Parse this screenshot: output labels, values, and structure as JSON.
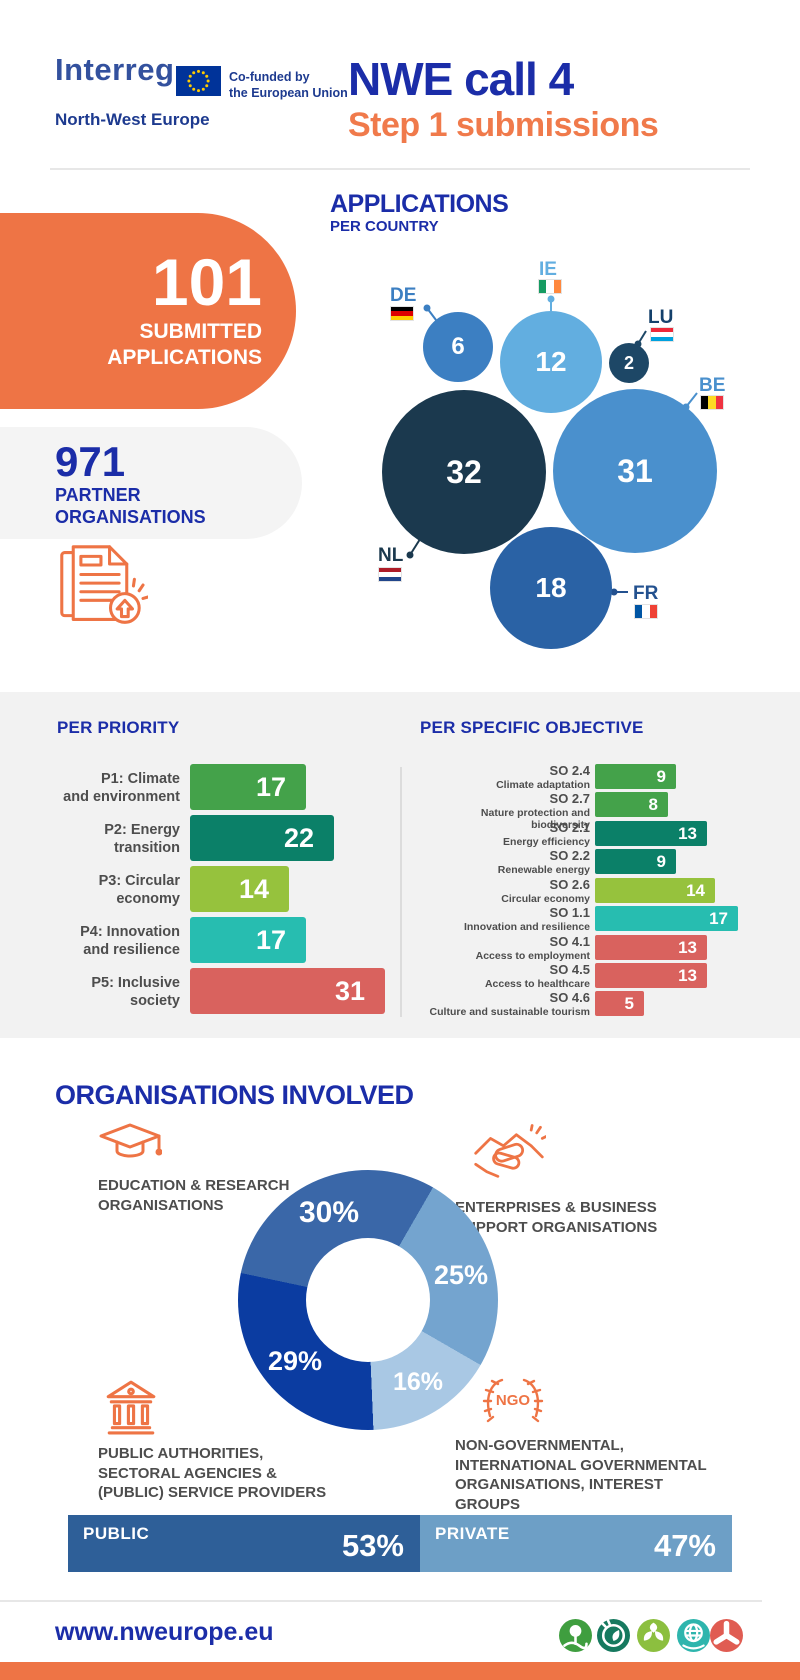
{
  "header": {
    "logo_brand": "Interreg",
    "logo_program": "North-West Europe",
    "eu_funding": "Co-funded by\nthe European Union",
    "title": "NWE call 4",
    "subtitle": "Step 1 submissions"
  },
  "stats": {
    "submitted_value": "101",
    "submitted_label": "SUBMITTED\nAPPLICATIONS",
    "partners_value": "971",
    "partners_label": "PARTNER\nORGANISATIONS"
  },
  "country_chart": {
    "title": "APPLICATIONS",
    "subtitle": "PER COUNTRY",
    "bubbles": [
      {
        "code": "DE",
        "value": 6,
        "color": "#3c7fc2"
      },
      {
        "code": "IE",
        "value": 12,
        "color": "#62aee0"
      },
      {
        "code": "LU",
        "value": 2,
        "color": "#1d4766"
      },
      {
        "code": "NL",
        "value": 32,
        "color": "#1b394e"
      },
      {
        "code": "BE",
        "value": 31,
        "color": "#4a90cd"
      },
      {
        "code": "FR",
        "value": 18,
        "color": "#2a62a5"
      }
    ]
  },
  "priority_chart": {
    "title": "PER PRIORITY",
    "rows": [
      {
        "label": "P1: Climate\nand environment",
        "value": 17,
        "color": "#44a24a"
      },
      {
        "label": "P2: Energy\ntransition",
        "value": 22,
        "color": "#0b8068"
      },
      {
        "label": "P3: Circular\neconomy",
        "value": 14,
        "color": "#96c23d"
      },
      {
        "label": "P4: Innovation\nand resilience",
        "value": 17,
        "color": "#27bdb0"
      },
      {
        "label": "P5: Inclusive\nsociety",
        "value": 31,
        "color": "#d9625e"
      }
    ]
  },
  "objective_chart": {
    "title": "PER SPECIFIC OBJECTIVE",
    "rows": [
      {
        "code": "SO 2.4",
        "label": "Climate adaptation",
        "value": 9,
        "color": "#44a24a"
      },
      {
        "code": "SO 2.7",
        "label": "Nature protection and biodiversity",
        "value": 8,
        "color": "#44a24a"
      },
      {
        "code": "SO 2.1",
        "label": "Energy efficiency",
        "value": 13,
        "color": "#0b8068"
      },
      {
        "code": "SO 2.2",
        "label": "Renewable energy",
        "value": 9,
        "color": "#0b8068"
      },
      {
        "code": "SO 2.6",
        "label": "Circular economy",
        "value": 14,
        "color": "#96c23d"
      },
      {
        "code": "SO 1.1",
        "label": "Innovation and resilience",
        "value": 17,
        "color": "#27bdb0"
      },
      {
        "code": "SO 4.1",
        "label": "Access to employment",
        "value": 13,
        "color": "#d9625e"
      },
      {
        "code": "SO 4.5",
        "label": "Access to healthcare",
        "value": 13,
        "color": "#d9625e"
      },
      {
        "code": "SO 4.6",
        "label": "Culture and sustainable tourism",
        "value": 5,
        "color": "#d9625e"
      }
    ]
  },
  "organisations": {
    "title": "ORGANISATIONS INVOLVED",
    "donut_from_deg": 282,
    "ngo_badge": "NGO",
    "segments": [
      {
        "pct": 30,
        "display": "30%",
        "color": "#3a67a8",
        "legend": "EDUCATION & RESEARCH\nORGANISATIONS"
      },
      {
        "pct": 25,
        "display": "25%",
        "color": "#74a4cf",
        "legend": "ENTERPRISES & BUSINESS\nSUPPORT ORGANISATIONS"
      },
      {
        "pct": 16,
        "display": "16%",
        "color": "#a9c8e4",
        "legend": "NON-GOVERNMENTAL,\nINTERNATIONAL GOVERNMENTAL\nORGANISATIONS, INTEREST\nGROUPS"
      },
      {
        "pct": 29,
        "display": "29%",
        "color": "#0b3ca1",
        "legend": "PUBLIC AUTHORITIES,\nSECTORAL AGENCIES &\n(PUBLIC) SERVICE PROVIDERS"
      }
    ]
  },
  "public_private": {
    "public_label": "PUBLIC",
    "public_value": "53%",
    "public_pct": 53,
    "public_color": "#2e5f98",
    "private_label": "PRIVATE",
    "private_value": "47%",
    "private_pct": 47,
    "private_color": "#6d9fc6"
  },
  "footer": {
    "website": "www.nweurope.eu",
    "badges": [
      {
        "name": "climate-environment",
        "color": "#3f9e3f"
      },
      {
        "name": "energy-transition",
        "color": "#16795f"
      },
      {
        "name": "circular-economy",
        "color": "#8cbf3f"
      },
      {
        "name": "innovation-resilience",
        "color": "#2eb5ad"
      },
      {
        "name": "inclusive-society",
        "color": "#e05c52"
      }
    ]
  },
  "chart_data": [
    {
      "type": "bubble",
      "title": "APPLICATIONS PER COUNTRY",
      "categories": [
        "DE",
        "IE",
        "LU",
        "NL",
        "BE",
        "FR"
      ],
      "values": [
        6,
        12,
        2,
        32,
        31,
        18
      ]
    },
    {
      "type": "bar",
      "title": "PER PRIORITY",
      "orientation": "horizontal",
      "categories": [
        "P1: Climate and environment",
        "P2: Energy transition",
        "P3: Circular economy",
        "P4: Innovation and resilience",
        "P5: Inclusive society"
      ],
      "values": [
        17,
        22,
        14,
        17,
        31
      ],
      "xlim": [
        0,
        31
      ]
    },
    {
      "type": "bar",
      "title": "PER SPECIFIC OBJECTIVE",
      "orientation": "horizontal",
      "categories": [
        "SO 2.4 Climate adaptation",
        "SO 2.7 Nature protection and biodiversity",
        "SO 2.1 Energy efficiency",
        "SO 2.2 Renewable energy",
        "SO 2.6 Circular economy",
        "SO 1.1 Innovation and resilience",
        "SO 4.1 Access to employment",
        "SO 4.5 Access to healthcare",
        "SO 4.6 Culture and sustainable tourism"
      ],
      "values": [
        9,
        8,
        13,
        9,
        14,
        17,
        13,
        13,
        5
      ],
      "xlim": [
        0,
        17
      ]
    },
    {
      "type": "pie",
      "title": "ORGANISATIONS INVOLVED",
      "unit": "%",
      "categories": [
        "Education & research organisations",
        "Enterprises & business support organisations",
        "Non-governmental, international governmental organisations, interest groups",
        "Public authorities, sectoral agencies & (public) service providers"
      ],
      "values": [
        30,
        25,
        16,
        29
      ]
    },
    {
      "type": "bar",
      "title": "PUBLIC vs PRIVATE",
      "unit": "%",
      "categories": [
        "PUBLIC",
        "PRIVATE"
      ],
      "values": [
        53,
        47
      ]
    }
  ]
}
